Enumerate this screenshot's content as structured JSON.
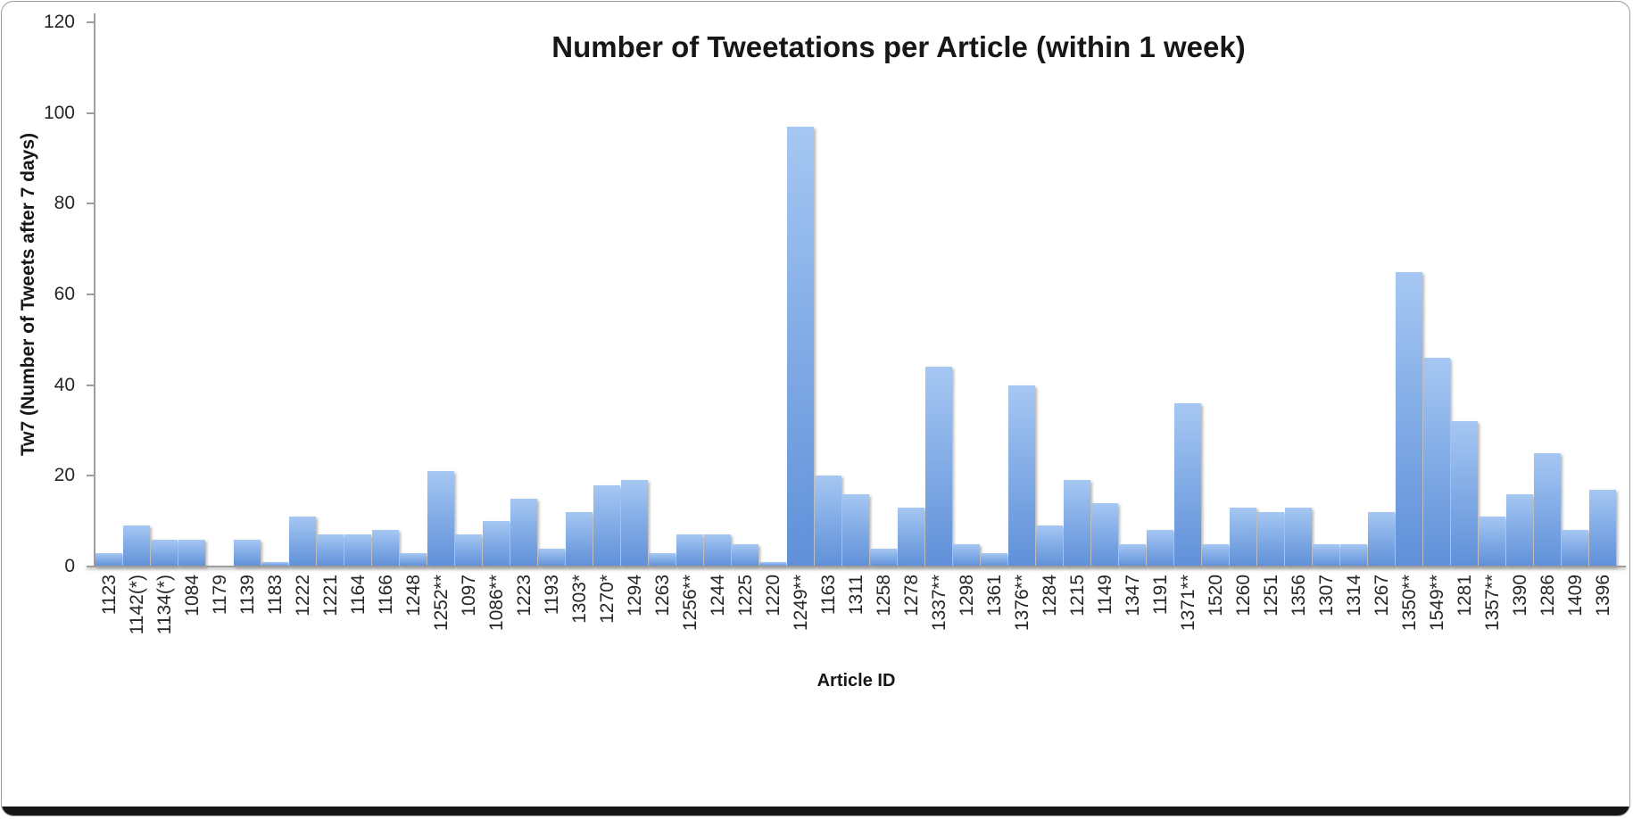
{
  "chart_data": {
    "type": "bar",
    "title": "Number of Tweetations per Article (within 1 week)",
    "xlabel": "Article ID",
    "ylabel": "Tw7 (Number of Tweets after 7 days)",
    "ylim": [
      0,
      120
    ],
    "yticks": [
      0,
      20,
      40,
      60,
      80,
      100,
      120
    ],
    "grid": false,
    "legend_position": "none",
    "bar_color_top": "#a6c7f2",
    "bar_color_bottom": "#6090d9",
    "axis_color": "#9e9e9e",
    "categories": [
      "1123",
      "1142(*)",
      "1134(*)",
      "1084",
      "1179",
      "1139",
      "1183",
      "1222",
      "1221",
      "1164",
      "1166",
      "1248",
      "1252**",
      "1097",
      "1086**",
      "1223",
      "1193",
      "1303*",
      "1270*",
      "1294",
      "1263",
      "1256**",
      "1244",
      "1225",
      "1220",
      "1249**",
      "1163",
      "1311",
      "1258",
      "1278",
      "1337**",
      "1298",
      "1361",
      "1376**",
      "1284",
      "1215",
      "1149",
      "1347",
      "1191",
      "1371**",
      "1520",
      "1260",
      "1251",
      "1356",
      "1307",
      "1314",
      "1267",
      "1350**",
      "1549**",
      "1281",
      "1357**",
      "1390",
      "1286",
      "1409",
      "1396"
    ],
    "values": [
      3,
      9,
      6,
      6,
      0,
      6,
      1,
      11,
      7,
      7,
      8,
      3,
      21,
      7,
      10,
      15,
      4,
      12,
      18,
      19,
      3,
      7,
      7,
      5,
      1,
      97,
      20,
      16,
      4,
      13,
      44,
      5,
      3,
      40,
      9,
      19,
      14,
      5,
      8,
      36,
      5,
      13,
      12,
      13,
      5,
      5,
      12,
      65,
      46,
      32,
      11,
      16,
      25,
      8,
      17
    ]
  }
}
